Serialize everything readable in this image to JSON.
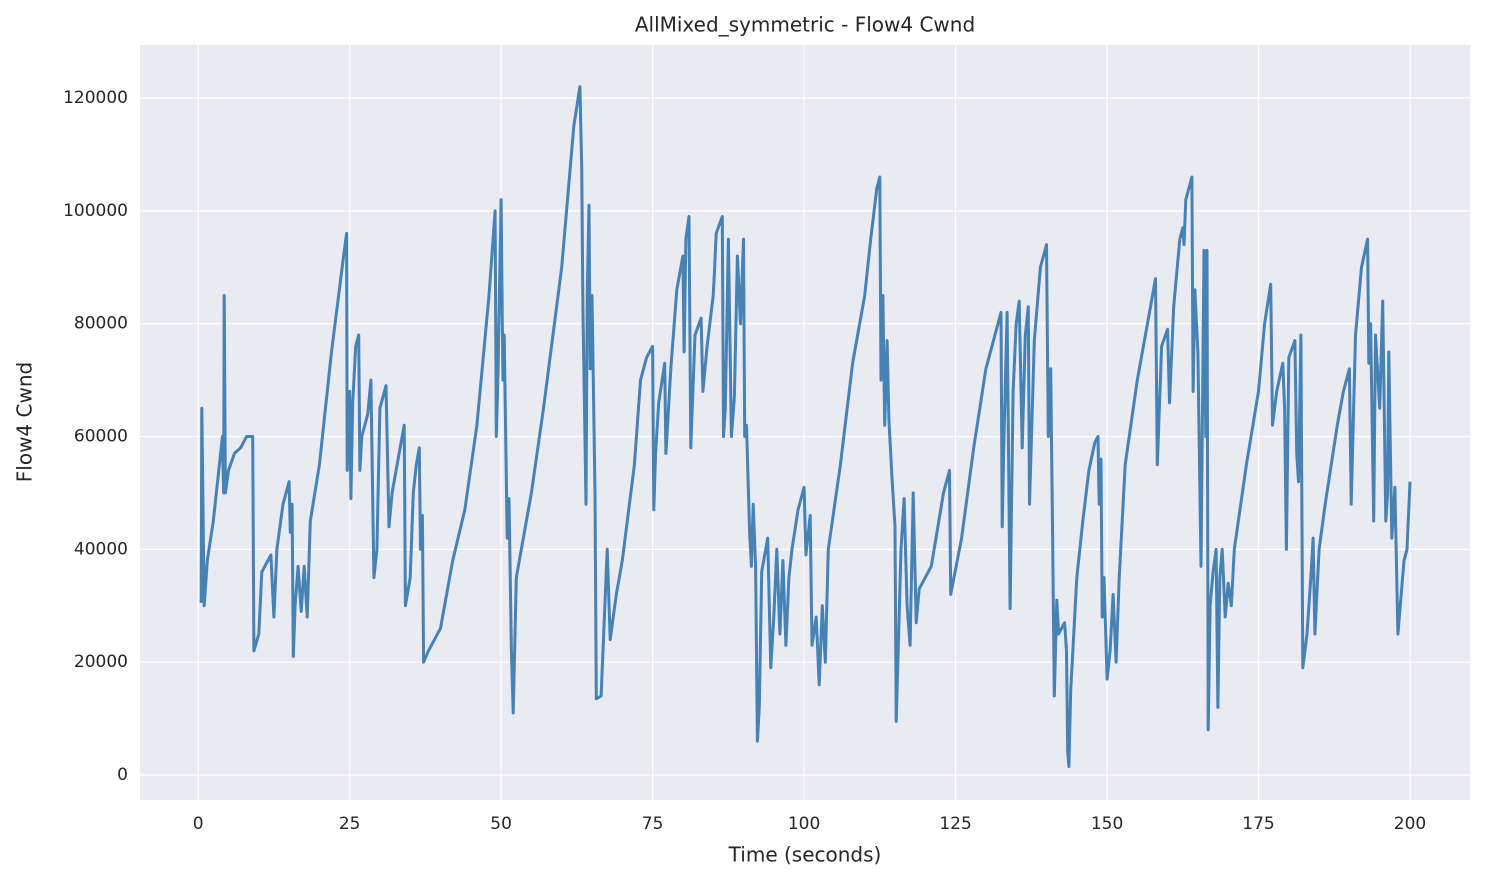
{
  "chart_data": {
    "type": "line",
    "title": "AllMixed_symmetric - Flow4 Cwnd",
    "x_label": "Time (seconds)",
    "y_label": "Flow4 Cwnd",
    "xlim": [
      -9.6,
      209.9
    ],
    "ylim": [
      -4430,
      129400
    ],
    "xticks": [
      0,
      25,
      50,
      75,
      100,
      125,
      150,
      175,
      200
    ],
    "yticks": [
      0,
      20000,
      40000,
      60000,
      80000,
      100000,
      120000
    ],
    "grid": true,
    "series": [
      {
        "name": "Flow4 Cwnd",
        "color": "#4682b4",
        "x": [
          0.5,
          0.6,
          1.0,
          1.5,
          2.5,
          3.5,
          4.0,
          4.2,
          4.3,
          4.5,
          5,
          6,
          7,
          8,
          9,
          9.2,
          10,
          10.5,
          12,
          12.5,
          13,
          14,
          15,
          15.2,
          15.5,
          15.7,
          16,
          16.5,
          17,
          17.5,
          18,
          18.5,
          20,
          22,
          24,
          24.5,
          24.6,
          25,
          25.2,
          25.5,
          26,
          26.5,
          26.7,
          27,
          28,
          28.5,
          29,
          29.5,
          30,
          31,
          31.5,
          32,
          33,
          34,
          34.2,
          35,
          35.5,
          36,
          36.5,
          36.7,
          37,
          37.2,
          38,
          40,
          42,
          44,
          46,
          48,
          49,
          49.2,
          49.5,
          50,
          50.3,
          50.5,
          51,
          51.3,
          51.7,
          52,
          52.5,
          55,
          57,
          60,
          62,
          63,
          63.3,
          63.5,
          64,
          64.2,
          64.5,
          64.7,
          65,
          65.5,
          65.7,
          66.5,
          67.5,
          68,
          69,
          70,
          72,
          73,
          74,
          75,
          75.2,
          75.5,
          76,
          77,
          77.2,
          78,
          79,
          80,
          80.2,
          80.5,
          81,
          81.3,
          81.5,
          82,
          83,
          83.3,
          84,
          85,
          85.2,
          85.5,
          86.5,
          86.7,
          87,
          87.5,
          88,
          88.5,
          89,
          89.5,
          90,
          90.2,
          90.5,
          91,
          91.3,
          91.6,
          92,
          92.3,
          92.6,
          93,
          94,
          94.5,
          95,
          95.5,
          96,
          96.5,
          97,
          97.5,
          98,
          99,
          100,
          100.3,
          101,
          101.3,
          102,
          102.5,
          103,
          103.5,
          104,
          106,
          108,
          110,
          111,
          112,
          112.5,
          112.7,
          113,
          113.3,
          113.7,
          114,
          114.5,
          115,
          115.2,
          116,
          116.5,
          117,
          117.5,
          118,
          118.5,
          119,
          121,
          123,
          124,
          124.2,
          126,
          128,
          130,
          132,
          132.5,
          132.7,
          133,
          133.5,
          134,
          134.5,
          135,
          135.5,
          136,
          136.5,
          137,
          137.2,
          138,
          139,
          140,
          140.3,
          140.7,
          141,
          141.3,
          141.7,
          142,
          143,
          143.3,
          143.5,
          143.7,
          144,
          145,
          146,
          147,
          148,
          148.5,
          148.7,
          149,
          149.2,
          149.5,
          150,
          150.5,
          151,
          151.5,
          152,
          153,
          155,
          157,
          158,
          158.3,
          159,
          160,
          160.3,
          161,
          162,
          162.5,
          162.7,
          163,
          164,
          164.2,
          164.5,
          165,
          165.5,
          166,
          166.3,
          166.5,
          166.7,
          167,
          167.5,
          168,
          168.3,
          168.6,
          169,
          169.5,
          170,
          170.5,
          171,
          173,
          175,
          176,
          177,
          177.3,
          178,
          179,
          179.3,
          179.6,
          180,
          181,
          181.3,
          181.6,
          182,
          182.3,
          183,
          183.7,
          184,
          184.3,
          185,
          186,
          188,
          189,
          190,
          190.3,
          191,
          192,
          193,
          193.2,
          193.5,
          194,
          194.3,
          195,
          195.5,
          196,
          196.3,
          196.5,
          197,
          197.5,
          198,
          199,
          199.5,
          200
        ],
        "values": [
          30500,
          65000,
          30000,
          38000,
          45000,
          55000,
          60000,
          50000,
          85000,
          50000,
          54000,
          57000,
          58000,
          60000,
          60000,
          22000,
          25000,
          36000,
          39000,
          28000,
          40000,
          48000,
          52000,
          43000,
          48000,
          21000,
          30000,
          37000,
          29000,
          37000,
          28000,
          45000,
          55000,
          75000,
          92000,
          96000,
          54000,
          68000,
          49000,
          66000,
          76000,
          78000,
          54000,
          60000,
          64000,
          70000,
          35000,
          40000,
          65000,
          69000,
          44000,
          50000,
          56000,
          62000,
          30000,
          35000,
          50000,
          55000,
          58000,
          40000,
          46000,
          20000,
          22000,
          26000,
          38000,
          47000,
          62000,
          85000,
          100000,
          60000,
          72000,
          102000,
          70000,
          78000,
          42000,
          49000,
          22000,
          11000,
          35000,
          50000,
          65000,
          90000,
          115000,
          122000,
          108000,
          83000,
          48000,
          85000,
          101000,
          72000,
          85000,
          50000,
          13500,
          14000,
          40000,
          24000,
          32000,
          38000,
          55000,
          70000,
          74000,
          76000,
          47000,
          57000,
          66000,
          73000,
          57000,
          72000,
          86000,
          92000,
          75000,
          95000,
          99000,
          58000,
          64000,
          78000,
          81000,
          68000,
          76000,
          85000,
          89000,
          96000,
          99000,
          60000,
          65000,
          95000,
          60000,
          67000,
          92000,
          80000,
          95000,
          60000,
          62000,
          43000,
          37000,
          48000,
          37000,
          6000,
          12000,
          36000,
          42000,
          19000,
          28000,
          40000,
          25000,
          38000,
          23000,
          35000,
          40000,
          47000,
          51000,
          39000,
          46000,
          23000,
          28000,
          16000,
          30000,
          20000,
          40000,
          55000,
          73000,
          85000,
          95000,
          104000,
          106000,
          70000,
          85000,
          62000,
          77000,
          63000,
          53000,
          44000,
          9500,
          40000,
          49000,
          30000,
          23000,
          50000,
          27000,
          33000,
          37000,
          50000,
          54000,
          32000,
          42000,
          58000,
          72000,
          80000,
          82000,
          44000,
          60000,
          82000,
          29500,
          68000,
          80000,
          84000,
          58000,
          78000,
          83000,
          48000,
          77000,
          90000,
          94000,
          60000,
          72000,
          44000,
          14000,
          31000,
          25000,
          27000,
          22000,
          4000,
          1500,
          15000,
          35000,
          45000,
          54000,
          59000,
          60000,
          48000,
          56000,
          28000,
          35000,
          17000,
          22000,
          32000,
          20000,
          35000,
          55000,
          70000,
          82000,
          88000,
          55000,
          76000,
          79000,
          66000,
          83000,
          95000,
          97000,
          94000,
          102000,
          106000,
          68000,
          86000,
          75000,
          37000,
          93000,
          60000,
          93000,
          8000,
          30000,
          36000,
          40000,
          12000,
          35000,
          40000,
          28000,
          34000,
          30000,
          40000,
          55000,
          68000,
          80000,
          87000,
          62000,
          68000,
          73000,
          65000,
          40000,
          74000,
          77000,
          57000,
          52000,
          78000,
          19000,
          25000,
          36000,
          42000,
          25000,
          40000,
          48000,
          62000,
          68000,
          72000,
          48000,
          78000,
          90000,
          95000,
          73000,
          80000,
          45000,
          78000,
          65000,
          84000,
          45000,
          50000,
          75000,
          42000,
          51000,
          25000,
          38000,
          40000,
          52000
        ]
      }
    ]
  }
}
